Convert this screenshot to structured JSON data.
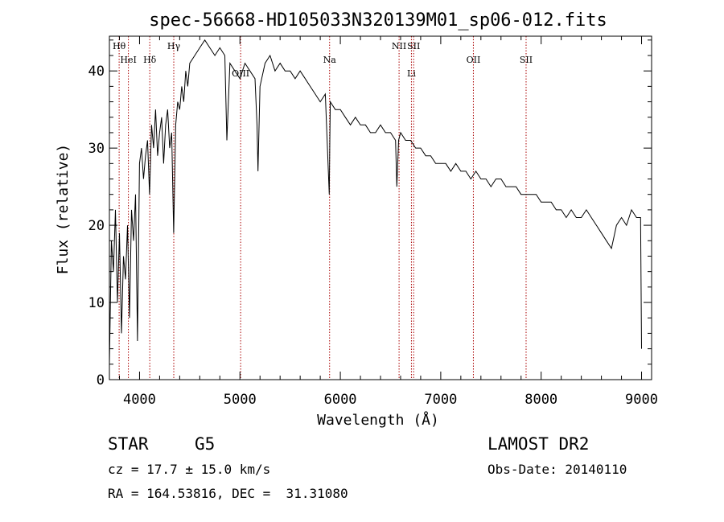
{
  "chart_data": {
    "type": "line",
    "title": "spec-56668-HD105033N320139M01_sp06-012.fits",
    "xlabel": "Wavelength (Å)",
    "ylabel": "Flux (relative)",
    "xlim": [
      3700,
      9100
    ],
    "ylim": [
      0,
      44.5
    ],
    "xticks": [
      4000,
      5000,
      6000,
      7000,
      8000,
      9000
    ],
    "yticks": [
      0,
      10,
      20,
      30,
      40
    ],
    "grid": false,
    "series": [
      {
        "x": [
          3700,
          3720,
          3740,
          3760,
          3780,
          3800,
          3820,
          3840,
          3860,
          3880,
          3900,
          3920,
          3940,
          3960,
          3980,
          4000,
          4020,
          4040,
          4060,
          4080,
          4100,
          4120,
          4140,
          4160,
          4180,
          4200,
          4220,
          4240,
          4260,
          4280,
          4300,
          4320,
          4340,
          4360,
          4380,
          4400,
          4420,
          4440,
          4460,
          4480,
          4500,
          4550,
          4600,
          4650,
          4700,
          4750,
          4800,
          4850,
          4870,
          4900,
          4950,
          5000,
          5050,
          5100,
          5150,
          5170,
          5180,
          5200,
          5250,
          5300,
          5350,
          5400,
          5450,
          5500,
          5550,
          5600,
          5650,
          5700,
          5750,
          5800,
          5850,
          5890,
          5895,
          5900,
          5950,
          6000,
          6050,
          6100,
          6150,
          6200,
          6250,
          6300,
          6350,
          6400,
          6450,
          6500,
          6550,
          6563,
          6580,
          6600,
          6650,
          6700,
          6750,
          6800,
          6850,
          6900,
          6950,
          7000,
          7050,
          7100,
          7150,
          7200,
          7250,
          7300,
          7350,
          7400,
          7450,
          7500,
          7550,
          7600,
          7650,
          7700,
          7750,
          7800,
          7850,
          7900,
          7950,
          8000,
          8050,
          8100,
          8150,
          8200,
          8250,
          8300,
          8350,
          8400,
          8450,
          8500,
          8550,
          8600,
          8650,
          8700,
          8750,
          8800,
          8850,
          8900,
          8950,
          8990,
          9000
        ],
        "y": [
          2,
          18,
          14,
          22,
          10,
          19,
          6,
          16,
          13,
          20,
          8,
          22,
          18,
          24,
          5,
          28,
          30,
          26,
          29,
          31,
          24,
          33,
          30,
          35,
          29,
          32,
          34,
          28,
          33,
          35,
          30,
          32,
          19,
          33,
          36,
          35,
          38,
          36,
          40,
          38,
          41,
          42,
          43,
          44,
          43,
          42,
          43,
          42,
          31,
          41,
          40,
          39,
          41,
          40,
          39,
          33,
          27,
          38,
          41,
          42,
          40,
          41,
          40,
          40,
          39,
          40,
          39,
          38,
          37,
          36,
          37,
          24,
          31,
          36,
          35,
          35,
          34,
          33,
          34,
          33,
          33,
          32,
          32,
          33,
          32,
          32,
          31,
          25,
          31,
          32,
          31,
          31,
          30,
          30,
          29,
          29,
          28,
          28,
          28,
          27,
          28,
          27,
          27,
          26,
          27,
          26,
          26,
          25,
          26,
          26,
          25,
          25,
          25,
          24,
          24,
          24,
          24,
          23,
          23,
          23,
          22,
          22,
          21,
          22,
          21,
          21,
          22,
          21,
          20,
          19,
          18,
          17,
          20,
          21,
          20,
          22,
          21,
          21,
          4
        ]
      }
    ],
    "line_markers": [
      {
        "label": "Hθ",
        "x": 3797,
        "row": 1
      },
      {
        "label": "HeI",
        "x": 3889,
        "row": 2
      },
      {
        "label": "Hδ",
        "x": 4102,
        "row": 2
      },
      {
        "label": "Hγ",
        "x": 4341,
        "row": 1
      },
      {
        "label": "OIII",
        "x": 5007,
        "row": 3
      },
      {
        "label": "Na",
        "x": 5893,
        "row": 2
      },
      {
        "label": "NII",
        "x": 6585,
        "row": 1
      },
      {
        "label": "Li",
        "x": 6708,
        "row": 3
      },
      {
        "label": "SII",
        "x": 6730,
        "row": 1
      },
      {
        "label": "OII",
        "x": 7325,
        "row": 2
      },
      {
        "label": "SII",
        "x": 7850,
        "row": 2
      }
    ],
    "line_color": "#000000",
    "marker_color": "#aa0000"
  },
  "info": {
    "object_class": "STAR",
    "subclass": "G5",
    "survey": "LAMOST DR2",
    "cz": "cz = 17.7 ± 15.0 km/s",
    "obs_date": "Obs-Date: 20140110",
    "coords": "RA = 164.53816, DEC =  31.31080"
  }
}
